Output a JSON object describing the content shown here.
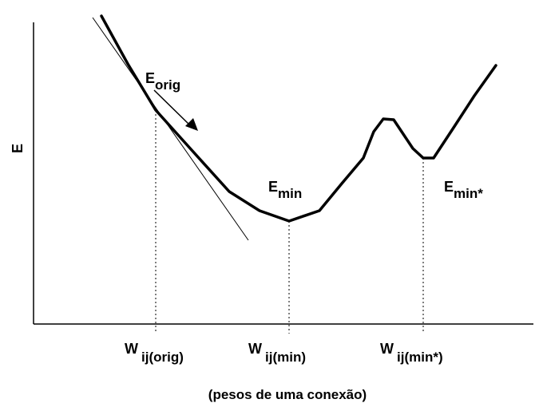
{
  "axes": {
    "y_label": "E",
    "x_label": "(pesos de uma conexão)"
  },
  "curve_labels": {
    "orig": {
      "base": "E",
      "sub": "orig"
    },
    "min": {
      "base": "E",
      "sub": "min"
    },
    "min_star": {
      "base": "E",
      "sub": "min*"
    }
  },
  "x_ticks": {
    "orig": {
      "base": "W",
      "sub": "ij(orig)"
    },
    "min": {
      "base": "W",
      "sub": "ij(min)"
    },
    "min_star": {
      "base": "W",
      "sub": "ij(min*)"
    }
  }
}
